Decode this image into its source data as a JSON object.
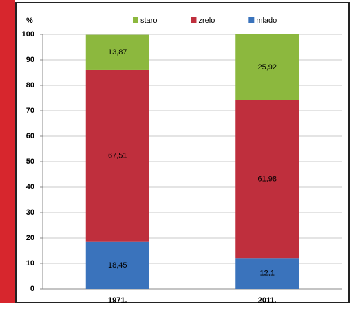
{
  "chart_data": {
    "type": "stacked-bar",
    "y_label": "%",
    "categories": [
      "1971.",
      "2011."
    ],
    "series": [
      {
        "name": "mlado",
        "color": "#3a73bc",
        "values": [
          18.45,
          12.1
        ],
        "value_labels": [
          "18,45",
          "12,1"
        ]
      },
      {
        "name": "zrelo",
        "color": "#bf2f3d",
        "values": [
          67.51,
          61.98
        ],
        "value_labels": [
          "67,51",
          "61,98"
        ]
      },
      {
        "name": "staro",
        "color": "#8cb83e",
        "values": [
          13.87,
          25.92
        ],
        "value_labels": [
          "13,87",
          "25,92"
        ]
      }
    ],
    "ylim": [
      0,
      100
    ],
    "yticks": [
      0,
      10,
      20,
      30,
      40,
      50,
      60,
      70,
      80,
      90,
      100
    ],
    "grid": true
  }
}
